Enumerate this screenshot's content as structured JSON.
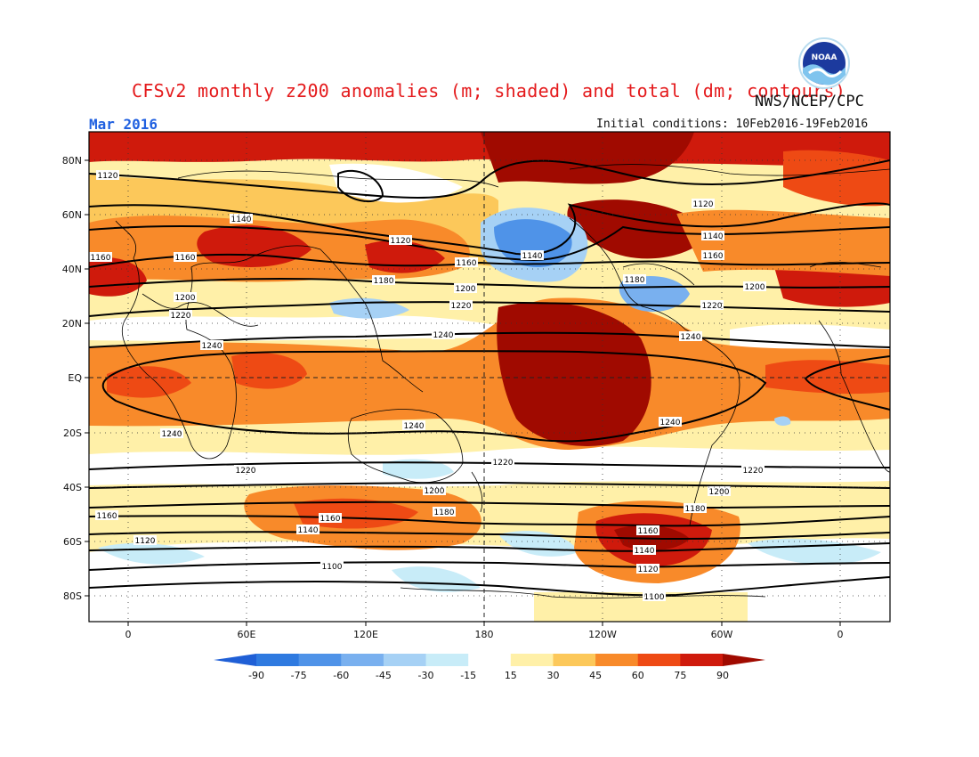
{
  "title": "CFSv2 monthly z200 anomalies (m; shaded) and total (dm; contours)",
  "organization": "NWS/NCEP/CPC",
  "logo_text": "NOAA",
  "valid_month": "Mar 2016",
  "initial_conditions": "Initial conditions: 10Feb2016-19Feb2016",
  "lat_labels": [
    "80N",
    "60N",
    "40N",
    "20N",
    "EQ",
    "20S",
    "40S",
    "60S",
    "80S"
  ],
  "lon_labels": [
    "0",
    "60E",
    "120E",
    "180",
    "120W",
    "60W",
    "0"
  ],
  "colorbar": {
    "labels": [
      "-90",
      "-75",
      "-60",
      "-45",
      "-30",
      "-15",
      "15",
      "30",
      "45",
      "60",
      "75",
      "90"
    ],
    "colors": [
      "#1f5fd6",
      "#2f7ae0",
      "#4f93e8",
      "#79b0ef",
      "#a6d1f5",
      "#c8ecf8",
      "#ffffff",
      "#fff0a8",
      "#fcc85a",
      "#f88a2a",
      "#ee4a14",
      "#cf1a0c",
      "#a00a00"
    ]
  },
  "contour_labels": {
    "1100": "1100",
    "1120": "1120",
    "1140": "1140",
    "1160": "1160",
    "1180": "1180",
    "1200": "1200",
    "1220": "1220",
    "1240": "1240"
  }
}
